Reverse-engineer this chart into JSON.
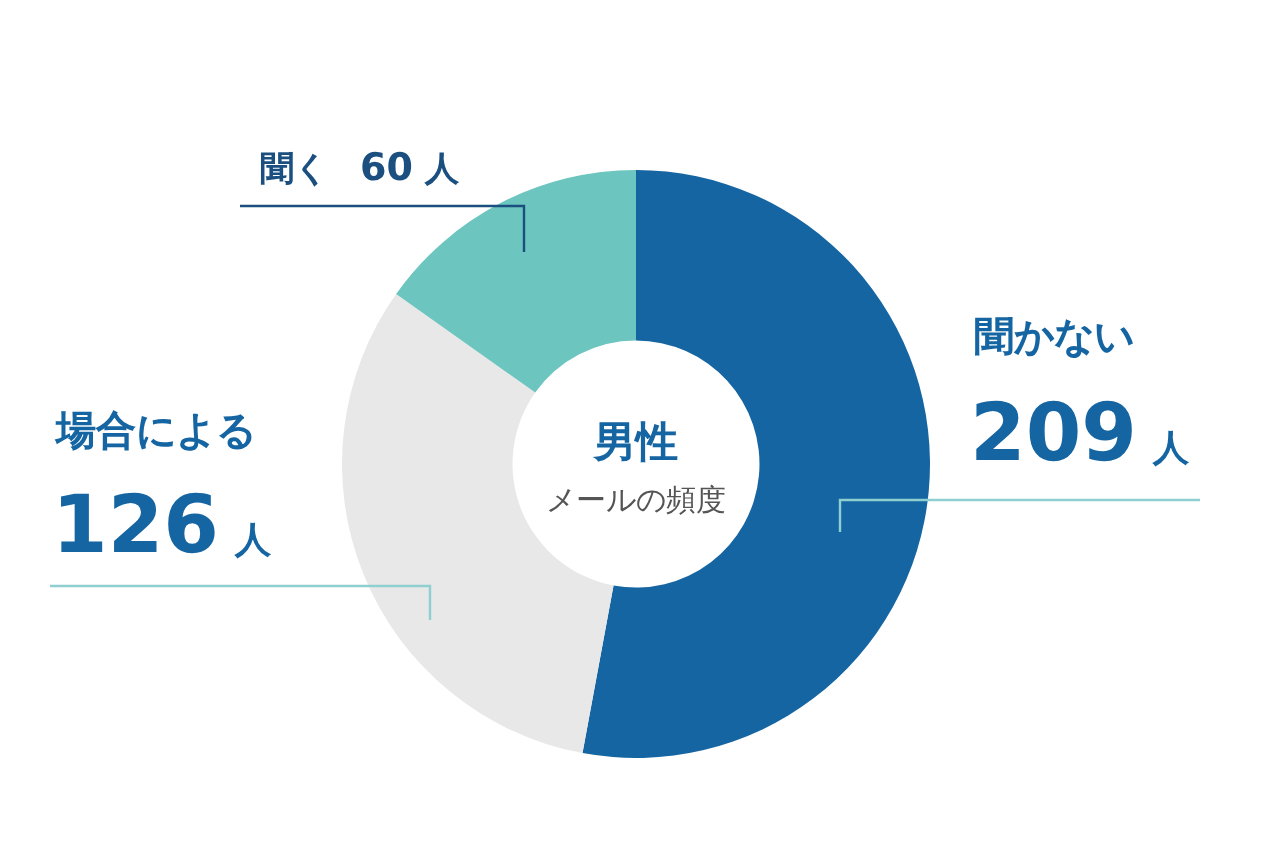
{
  "chart_data": {
    "type": "donut",
    "title": "男性",
    "subtitle": "メールの頻度",
    "categories": [
      "聞かない",
      "場合による",
      "聞く"
    ],
    "values": [
      209,
      126,
      60
    ],
    "value_labels": [
      "209 人",
      "126 人",
      "60 人"
    ],
    "colors": [
      "#1565a3",
      "#e8e8e8",
      "#6dc5bf"
    ]
  }
}
